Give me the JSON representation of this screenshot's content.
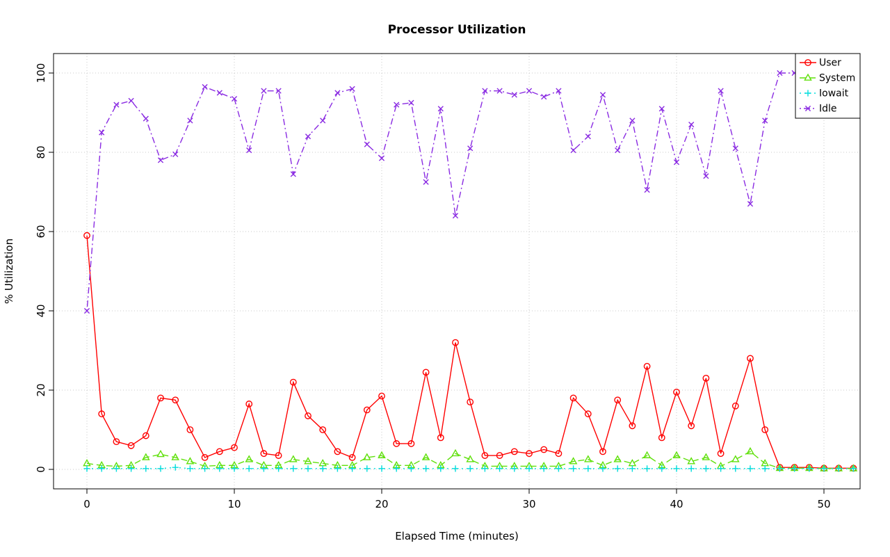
{
  "chart_data": {
    "type": "line",
    "title": "Processor Utilization",
    "xlabel": "Elapsed Time (minutes)",
    "ylabel": "% Utilization",
    "xlim": [
      0,
      52
    ],
    "ylim": [
      0,
      100
    ],
    "xticks": [
      0,
      10,
      20,
      30,
      40,
      50
    ],
    "yticks": [
      0,
      20,
      40,
      60,
      80,
      100
    ],
    "grid": true,
    "grid_style": "dotted-lightgray",
    "legend_position": "top-right",
    "x": [
      0,
      1,
      2,
      3,
      4,
      5,
      6,
      7,
      8,
      9,
      10,
      11,
      12,
      13,
      14,
      15,
      16,
      17,
      18,
      19,
      20,
      21,
      22,
      23,
      24,
      25,
      26,
      27,
      28,
      29,
      30,
      31,
      32,
      33,
      34,
      35,
      36,
      37,
      38,
      39,
      40,
      41,
      42,
      43,
      44,
      45,
      46,
      47,
      48,
      49,
      50,
      51,
      52
    ],
    "series": [
      {
        "name": "User",
        "color": "#FF0000",
        "marker": "circle",
        "line": "solid",
        "values": [
          59,
          14,
          7,
          6,
          8.5,
          18,
          17.5,
          10,
          3,
          4.5,
          5.5,
          16.5,
          4,
          3.5,
          22,
          13.5,
          10,
          4.5,
          3,
          15,
          18.5,
          6.5,
          6.5,
          24.5,
          8,
          32,
          17,
          3.5,
          3.5,
          4.5,
          4,
          5,
          4,
          18,
          14,
          4.5,
          17.5,
          11,
          26,
          8,
          19.5,
          11,
          23,
          4,
          16,
          28,
          10,
          0.5,
          0.5,
          0.5,
          0.3,
          0.3,
          0.3
        ]
      },
      {
        "name": "System",
        "color": "#5FE00A",
        "marker": "triangle",
        "line": "dashed",
        "values": [
          1.5,
          1,
          0.8,
          1,
          3,
          3.8,
          3,
          2,
          0.8,
          1,
          1,
          2.5,
          1,
          1,
          2.5,
          2,
          1.5,
          1,
          1,
          3,
          3.5,
          1,
          1,
          3,
          1,
          4,
          2.5,
          0.8,
          0.8,
          0.8,
          0.8,
          0.8,
          0.8,
          2,
          2.5,
          1,
          2.5,
          1.5,
          3.5,
          1,
          3.5,
          2,
          3,
          0.8,
          2.5,
          4.5,
          1.5,
          0.3,
          0.3,
          0.3,
          0.2,
          0.2,
          0.2
        ]
      },
      {
        "name": "Iowait",
        "color": "#00DDDD",
        "marker": "plus",
        "line": "dotted",
        "values": [
          0.2,
          0.2,
          0.2,
          0.2,
          0.2,
          0.2,
          0.5,
          0.2,
          0.2,
          0.2,
          0.2,
          0.2,
          0.2,
          0.2,
          0.2,
          0.2,
          0.2,
          0.2,
          0.2,
          0.2,
          0.2,
          0.2,
          0.2,
          0.2,
          0.2,
          0.2,
          0.2,
          0.2,
          0.2,
          0.2,
          0.2,
          0.2,
          0.2,
          0.2,
          0.2,
          0.2,
          0.2,
          0.2,
          0.2,
          0.2,
          0.2,
          0.2,
          0.2,
          0.2,
          0.2,
          0.2,
          0.2,
          0.2,
          0.2,
          0.2,
          0.2,
          0.2,
          0.2
        ]
      },
      {
        "name": "Idle",
        "color": "#8A2BE2",
        "marker": "x",
        "line": "dotdash",
        "values": [
          40,
          85,
          92,
          93,
          88.5,
          78,
          79.5,
          88,
          96.5,
          95,
          93.5,
          80.5,
          95.5,
          95.5,
          74.5,
          84,
          88,
          95,
          96,
          82,
          78.5,
          92,
          92.5,
          72.5,
          91,
          64,
          81,
          95.5,
          95.5,
          94.5,
          95.5,
          94,
          95.5,
          80.5,
          84,
          94.5,
          80.5,
          88,
          70.5,
          91,
          77.5,
          87,
          74,
          95.5,
          81,
          67,
          88,
          100,
          100,
          99.5,
          100,
          99.5,
          100
        ]
      }
    ]
  }
}
